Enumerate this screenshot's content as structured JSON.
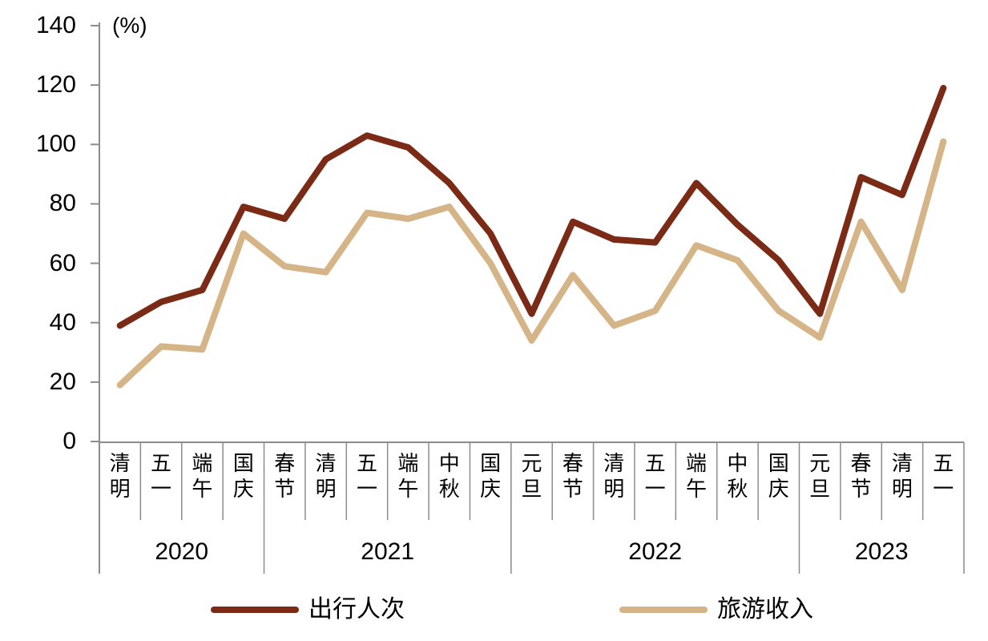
{
  "chart_data": {
    "type": "line",
    "title": "",
    "unit_label": "(%)",
    "xlabel": "",
    "ylabel": "(%)",
    "ylim": [
      0,
      140
    ],
    "y_ticks": [
      0,
      20,
      40,
      60,
      80,
      100,
      120,
      140
    ],
    "grid": false,
    "legend_position": "bottom",
    "categories": [
      "清明",
      "五一",
      "端午",
      "国庆",
      "春节",
      "清明",
      "五一",
      "端午",
      "中秋",
      "国庆",
      "元旦",
      "春节",
      "清明",
      "五一",
      "端午",
      "中秋",
      "国庆",
      "元旦",
      "春节",
      "清明",
      "五一"
    ],
    "year_groups": [
      {
        "label": "2020",
        "count": 4
      },
      {
        "label": "2021",
        "count": 6
      },
      {
        "label": "2022",
        "count": 7
      },
      {
        "label": "2023",
        "count": 4
      }
    ],
    "series": [
      {
        "name": "出行人次",
        "color": "#7B2A16",
        "values": [
          39,
          47,
          51,
          79,
          75,
          95,
          103,
          99,
          87,
          70,
          43,
          74,
          68,
          67,
          87,
          73,
          61,
          43,
          89,
          83,
          119
        ]
      },
      {
        "name": "旅游收入",
        "color": "#D5B488",
        "values": [
          19,
          32,
          31,
          70,
          59,
          57,
          77,
          75,
          79,
          60,
          34,
          56,
          39,
          44,
          66,
          61,
          44,
          35,
          74,
          51,
          101
        ]
      }
    ]
  },
  "style": {
    "axis_color": "#8C8C8C",
    "text_color": "#000000",
    "background": "#FFFFFF"
  }
}
